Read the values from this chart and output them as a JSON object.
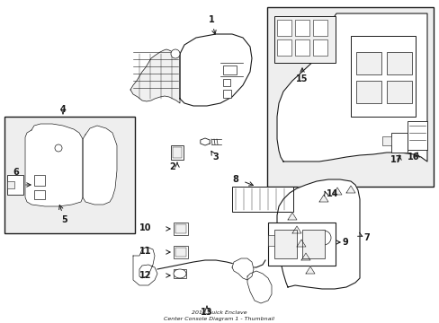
{
  "bg_color": "#ffffff",
  "line_color": "#1a1a1a",
  "fill_white": "#ffffff",
  "fill_light": "#f0f0f0",
  "fill_box": "#eeeeee",
  "fig_width": 4.89,
  "fig_height": 3.6,
  "dpi": 100
}
